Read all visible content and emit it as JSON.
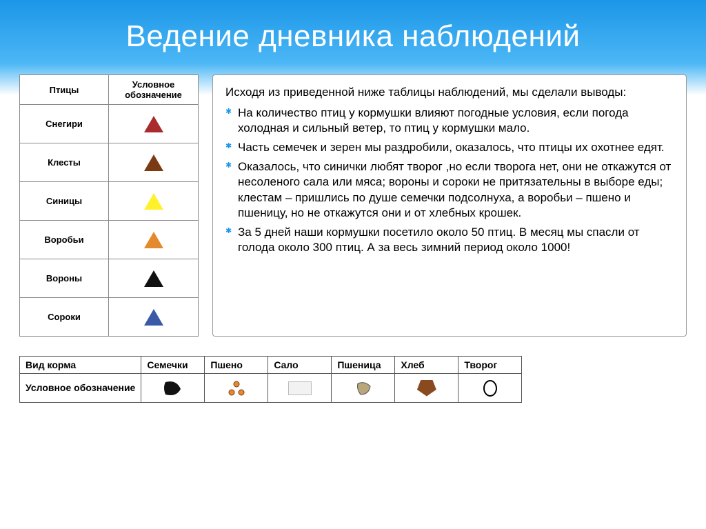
{
  "title": "Ведение дневника наблюдений",
  "birds_table": {
    "headers": {
      "col1": "Птицы",
      "col2": "Условное обозначение"
    },
    "rows": [
      {
        "name": "Снегири",
        "color": "#a82c2c"
      },
      {
        "name": "Клесты",
        "color": "#7a3a14"
      },
      {
        "name": "Синицы",
        "color": "#fff22d"
      },
      {
        "name": "Воробьи",
        "color": "#e58a2c"
      },
      {
        "name": "Вороны",
        "color": "#111111"
      },
      {
        "name": "Сороки",
        "color": "#3a5aa8"
      }
    ]
  },
  "text": {
    "intro": "Исходя из приведенной ниже таблицы наблюдений, мы сделали выводы:",
    "bullets": [
      "На количество птиц у кормушки влияют погодные условия, если погода холодная и сильный ветер, то птиц у кормушки мало.",
      "Часть семечек и зерен мы раздробили, оказалось, что птицы их охотнее едят.",
      "Оказалось, что синички любят творог ,но если творога нет, они не откажутся от несоленого сала или мяса; вороны и сороки не притязательны в выборе еды; клестам – пришлись по душе семечки подсолнуха, а воробьи – пшено и пшеницу, но не откажутся они и от хлебных крошек.",
      "За 5 дней наши кормушки посетило около 50 птиц. В месяц мы спасли от голода около 300 птиц. А за весь зимний период около 1000!"
    ]
  },
  "food_table": {
    "row_label_1": "Вид корма",
    "row_label_2": "Условное обозначение",
    "foods": [
      {
        "name": "Семечки",
        "icon": "seed",
        "color": "#111111"
      },
      {
        "name": "Пшено",
        "icon": "dots",
        "color": "#e58a2c"
      },
      {
        "name": "Сало",
        "icon": "rect",
        "color": "#f2f2f2"
      },
      {
        "name": "Пшеница",
        "icon": "grain",
        "color": "#b7a77a"
      },
      {
        "name": "Хлеб",
        "icon": "pentagon",
        "color": "#8a4a20"
      },
      {
        "name": "Творог",
        "icon": "oval",
        "color": "#ffffff"
      }
    ]
  }
}
